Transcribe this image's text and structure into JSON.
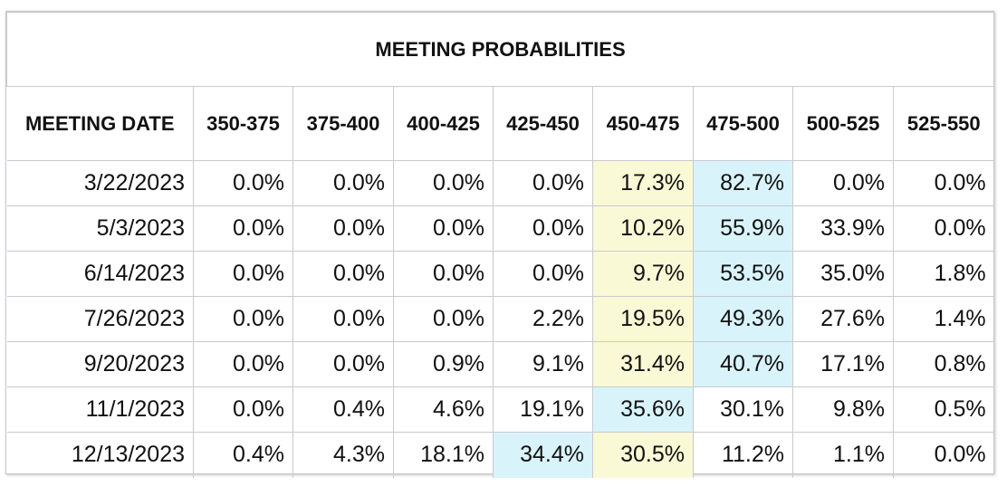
{
  "title": "MEETING PROBABILITIES",
  "columns": [
    "MEETING DATE",
    "350-375",
    "375-400",
    "400-425",
    "425-450",
    "450-475",
    "475-500",
    "500-525",
    "525-550"
  ],
  "colors": {
    "highlight_yellow": "#f9f9d6",
    "highlight_blue": "#d9f3fb",
    "border": "#c9c9cf"
  },
  "rows": [
    {
      "date": "3/22/2023",
      "values": [
        "0.0%",
        "0.0%",
        "0.0%",
        "0.0%",
        "17.3%",
        "82.7%",
        "0.0%",
        "0.0%"
      ],
      "highlights": [
        "",
        "",
        "",
        "",
        "yellow",
        "blue",
        "",
        ""
      ]
    },
    {
      "date": "5/3/2023",
      "values": [
        "0.0%",
        "0.0%",
        "0.0%",
        "0.0%",
        "10.2%",
        "55.9%",
        "33.9%",
        "0.0%"
      ],
      "highlights": [
        "",
        "",
        "",
        "",
        "yellow",
        "blue",
        "",
        ""
      ]
    },
    {
      "date": "6/14/2023",
      "values": [
        "0.0%",
        "0.0%",
        "0.0%",
        "0.0%",
        "9.7%",
        "53.5%",
        "35.0%",
        "1.8%"
      ],
      "highlights": [
        "",
        "",
        "",
        "",
        "yellow",
        "blue",
        "",
        ""
      ]
    },
    {
      "date": "7/26/2023",
      "values": [
        "0.0%",
        "0.0%",
        "0.0%",
        "2.2%",
        "19.5%",
        "49.3%",
        "27.6%",
        "1.4%"
      ],
      "highlights": [
        "",
        "",
        "",
        "",
        "yellow",
        "blue",
        "",
        ""
      ]
    },
    {
      "date": "9/20/2023",
      "values": [
        "0.0%",
        "0.0%",
        "0.9%",
        "9.1%",
        "31.4%",
        "40.7%",
        "17.1%",
        "0.8%"
      ],
      "highlights": [
        "",
        "",
        "",
        "",
        "yellow",
        "blue",
        "",
        ""
      ]
    },
    {
      "date": "11/1/2023",
      "values": [
        "0.0%",
        "0.4%",
        "4.6%",
        "19.1%",
        "35.6%",
        "30.1%",
        "9.8%",
        "0.5%"
      ],
      "highlights": [
        "",
        "",
        "",
        "",
        "blue",
        "",
        "",
        ""
      ]
    },
    {
      "date": "12/13/2023",
      "values": [
        "0.4%",
        "4.3%",
        "18.1%",
        "34.4%",
        "30.5%",
        "11.2%",
        "1.1%",
        "0.0%"
      ],
      "highlights": [
        "",
        "",
        "",
        "blue",
        "yellow",
        "",
        "",
        ""
      ]
    }
  ]
}
